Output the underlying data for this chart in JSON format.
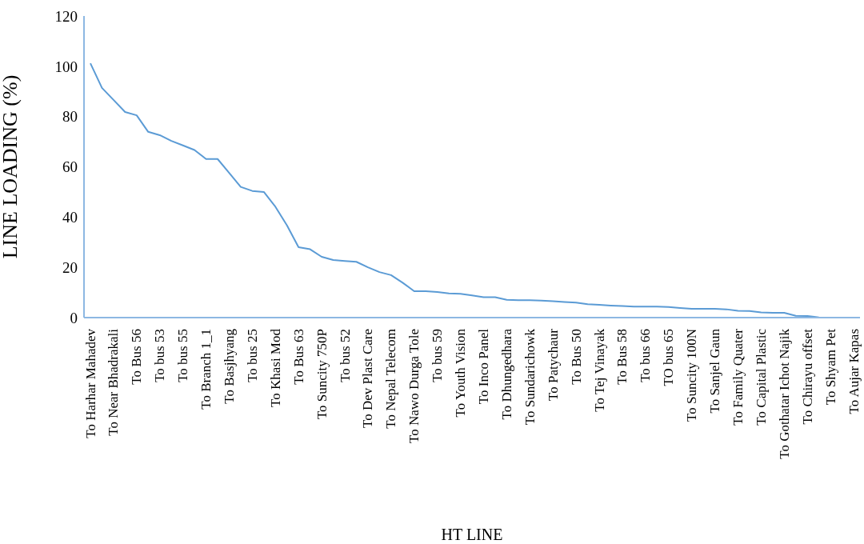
{
  "chart_data": {
    "type": "line",
    "xlabel": "HT LINE",
    "ylabel": "LINE LOADING (%)",
    "categories": [
      "To Harhar Mahadev",
      null,
      "To Near Bhadrakali",
      null,
      "To Bus 56",
      null,
      "To bus 53",
      null,
      "To bus 55",
      null,
      "To Branch 1_1",
      null,
      "To Basjhyang",
      null,
      "To bus 25",
      null,
      "To Khasi Mod",
      null,
      "To Bus 63",
      null,
      "To Suncity 750P",
      null,
      "To bus 52",
      null,
      "To Dev Plast Care",
      null,
      "To Nepal Telecom",
      null,
      "To Nawo Durga Tole",
      null,
      "To bus 59",
      null,
      "To Youth Vision",
      null,
      "To Inco Panel",
      null,
      "To Dhungedhara",
      null,
      "To Sundarichowk",
      null,
      "To Patychaur",
      null,
      "To Bus 50",
      null,
      "To Tej Vinayak",
      null,
      "To Bus 58",
      null,
      "To bus 66",
      null,
      "TO bus 65",
      null,
      "To Suncity 100N",
      null,
      "To Sanjel Gaun",
      null,
      "To Family Quater",
      null,
      "To Capital Plastic",
      null,
      "To Gothatar Ichot Najik",
      null,
      "To Chirayu offset",
      null,
      "To Shyam Pet",
      null,
      "To Aujar Kapas"
    ],
    "series": [
      {
        "color": "#5b9bd5",
        "values": [
          101.2,
          91.4,
          86.6,
          81.8,
          80.5,
          73.9,
          72.6,
          70.3,
          68.5,
          66.7,
          63.1,
          63.1,
          57.6,
          52.0,
          50.4,
          50.0,
          44.1,
          36.7,
          28.0,
          27.2,
          24.2,
          22.9,
          22.5,
          22.2,
          20.0,
          18.1,
          16.9,
          13.9,
          10.5,
          10.5,
          10.2,
          9.6,
          9.5,
          8.8,
          8.1,
          8.1,
          7.1,
          6.9,
          6.9,
          6.8,
          6.5,
          6.2,
          6.0,
          5.3,
          5.1,
          4.8,
          4.6,
          4.4,
          4.4,
          4.4,
          4.2,
          3.8,
          3.5,
          3.5,
          3.5,
          3.3,
          2.7,
          2.6,
          2.1,
          1.9,
          1.9,
          0.7,
          0.6,
          0.1,
          0,
          0,
          0
        ]
      }
    ],
    "ylim": [
      0,
      120
    ],
    "yticks": [
      0,
      20,
      40,
      60,
      80,
      100,
      120
    ],
    "grid": false,
    "legend": false,
    "marker": "none",
    "line_style": "solid"
  }
}
